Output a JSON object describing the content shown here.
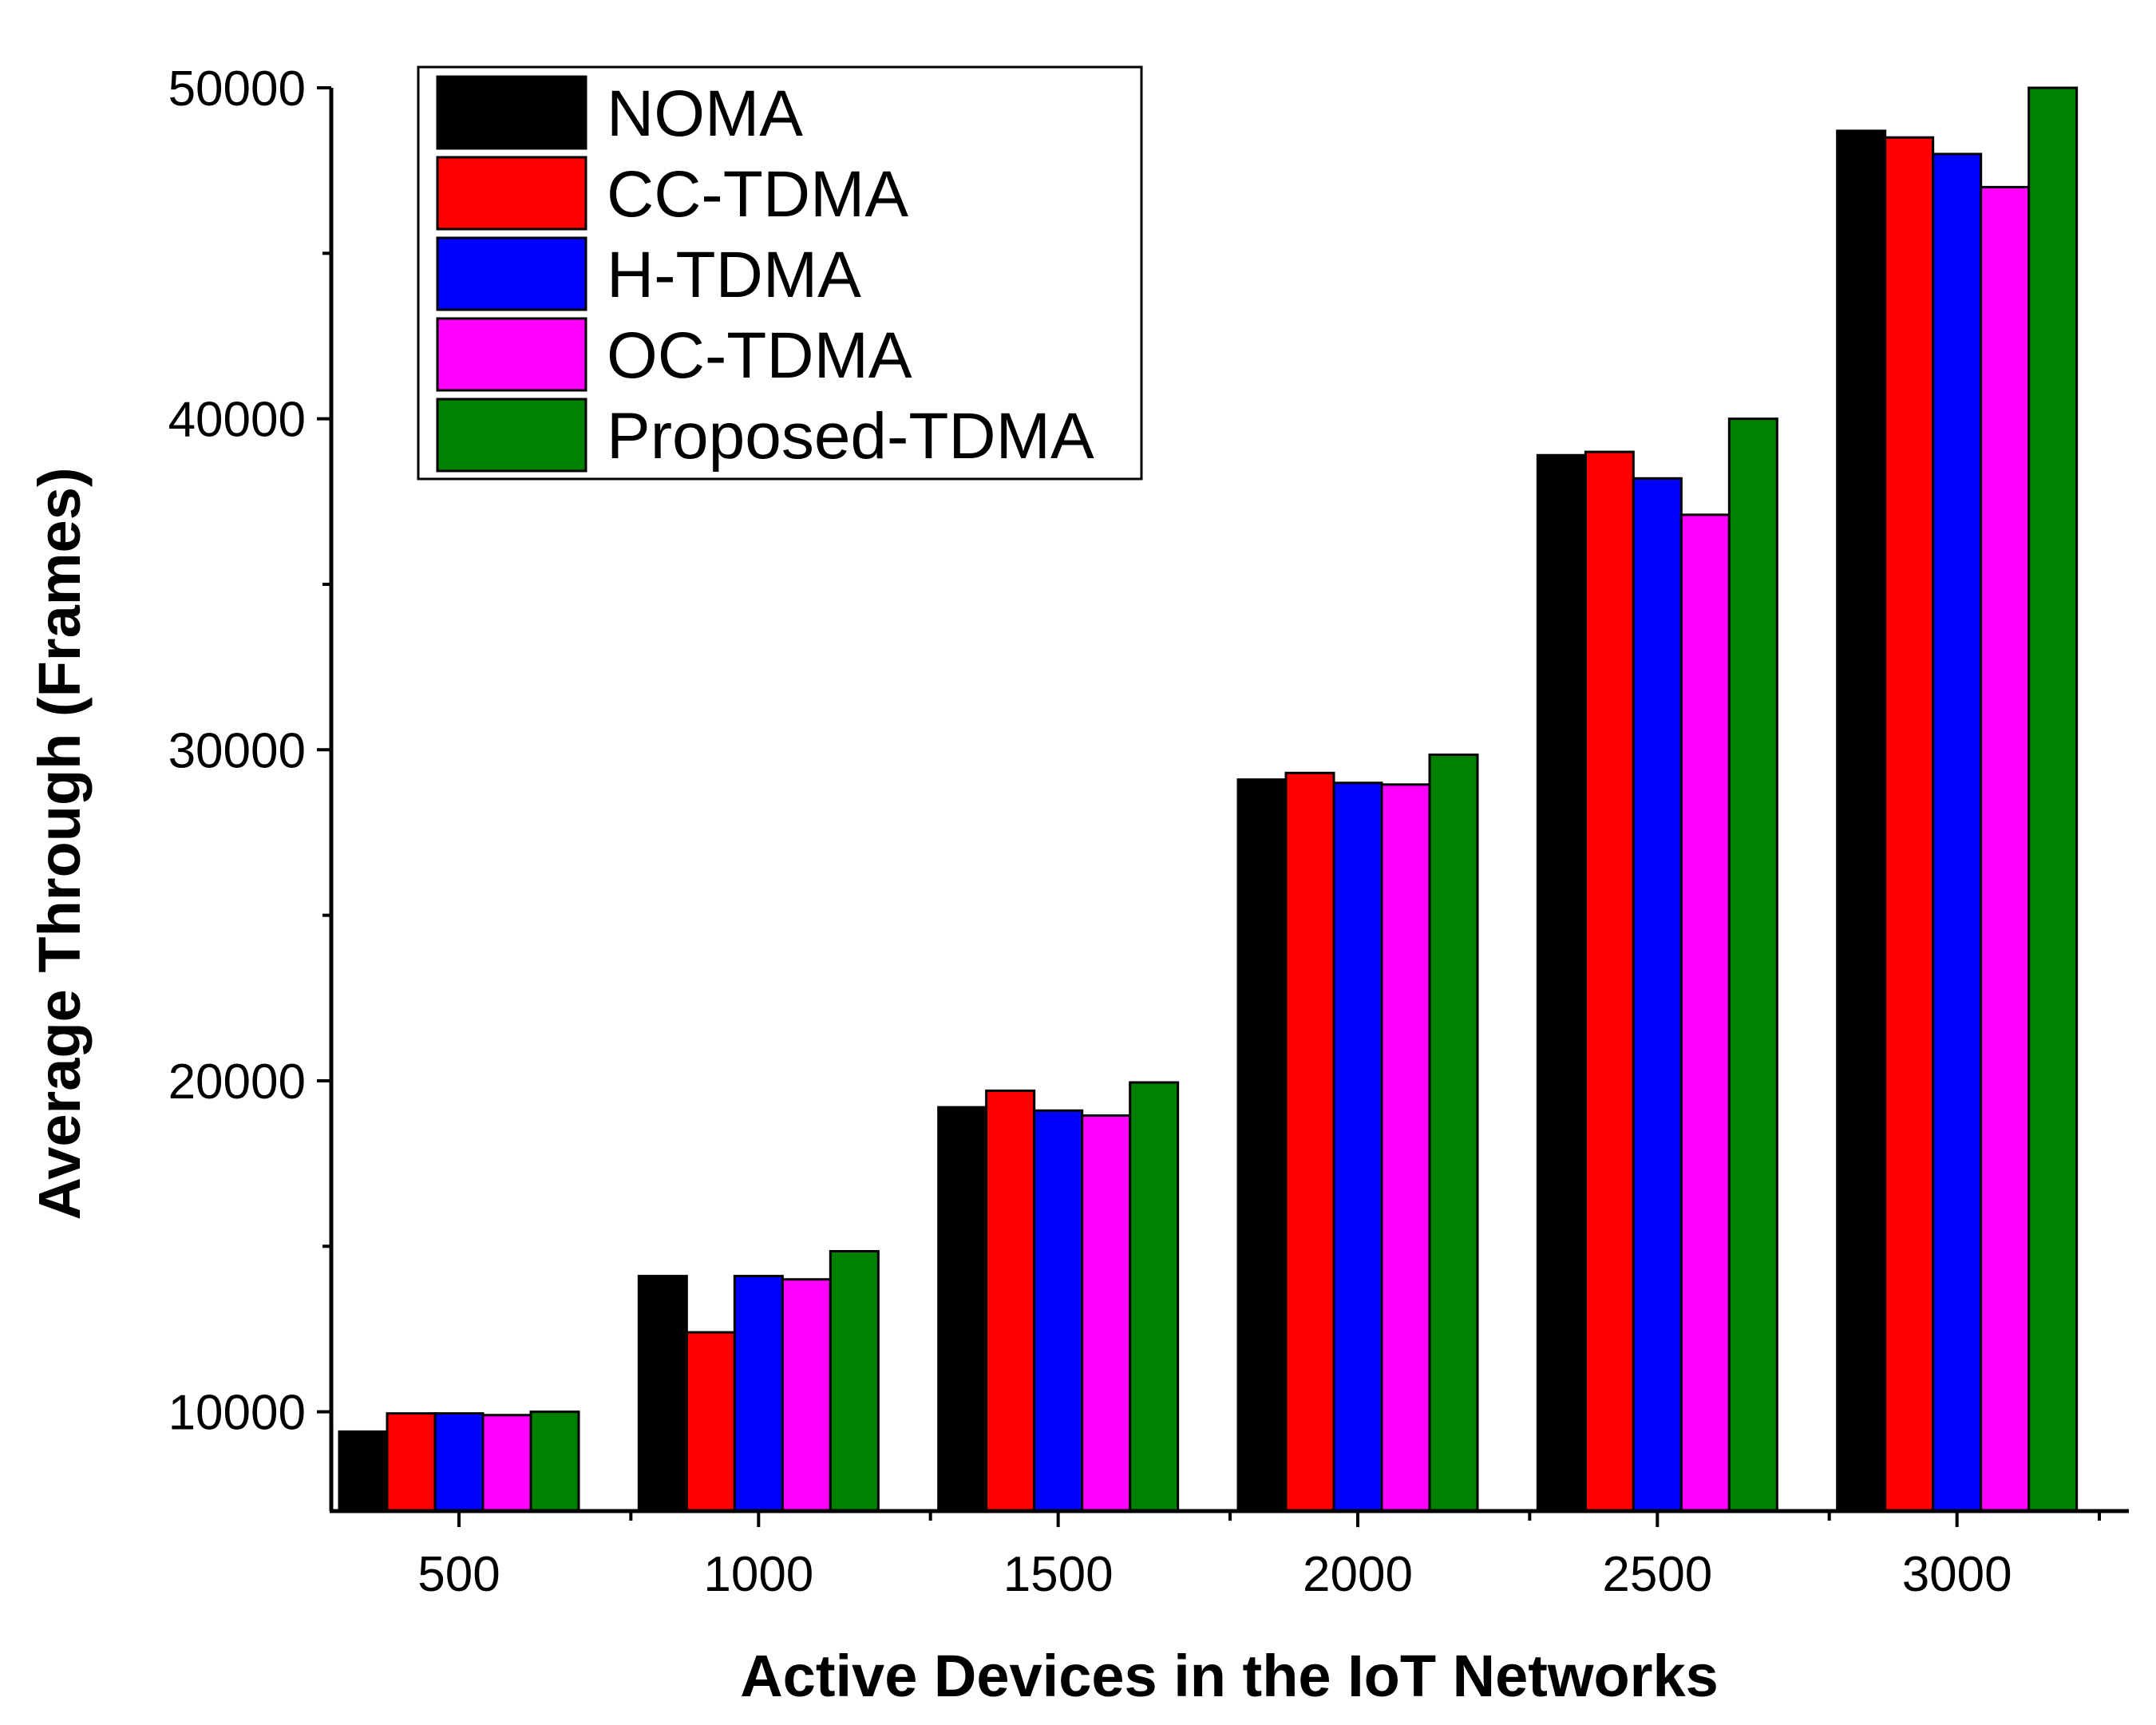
{
  "chart_data": {
    "type": "bar",
    "title": "",
    "xlabel": "Active Devices in the IoT Networks",
    "ylabel": "Average Through (Frames)",
    "categories": [
      "500",
      "1000",
      "1500",
      "2000",
      "2500",
      "3000"
    ],
    "ylim": [
      7000,
      50000
    ],
    "yticks": [
      10000,
      20000,
      30000,
      40000,
      50000
    ],
    "ytick_labels": [
      "10000",
      "20000",
      "30000",
      "40000",
      "50000"
    ],
    "grid": false,
    "legend_position": "top-left",
    "series": [
      {
        "name": "NOMA",
        "color": "#000000",
        "values": [
          9400,
          14100,
          19200,
          29100,
          38900,
          48700
        ]
      },
      {
        "name": "CC-TDMA",
        "color": "#ff0000",
        "values": [
          9950,
          12400,
          19700,
          29300,
          39000,
          48500
        ]
      },
      {
        "name": "H-TDMA",
        "color": "#0000ff",
        "values": [
          9950,
          14100,
          19100,
          29000,
          38200,
          48000
        ]
      },
      {
        "name": "OC-TDMA",
        "color": "#ff00ff",
        "values": [
          9900,
          14000,
          18950,
          28950,
          37100,
          47000
        ]
      },
      {
        "name": "Proposed-TDMA",
        "color": "#008000",
        "values": [
          10000,
          14850,
          19950,
          29850,
          40000,
          50000
        ]
      }
    ]
  }
}
